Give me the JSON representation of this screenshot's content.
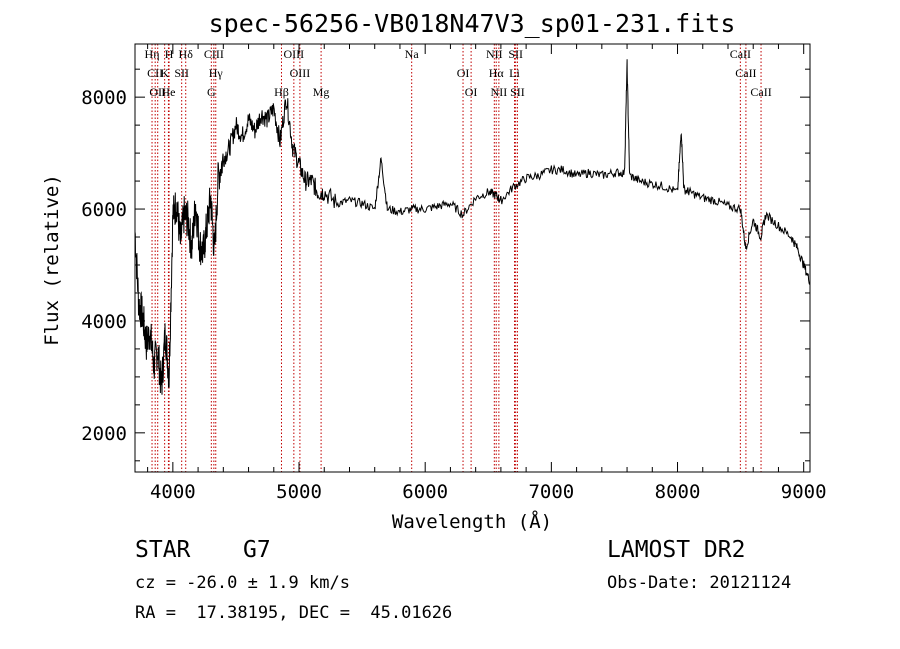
{
  "chart_data": {
    "type": "line",
    "title": "spec-56256-VB018N47V3_sp01-231.fits",
    "xlabel": "Wavelength (Å)",
    "ylabel": "Flux (relative)",
    "xlim": [
      3700,
      9050
    ],
    "ylim": [
      1300,
      8950
    ],
    "xticks": [
      4000,
      5000,
      6000,
      7000,
      8000,
      9000
    ],
    "xtick_labels": [
      "4000",
      "5000",
      "6000",
      "7000",
      "8000",
      "9000"
    ],
    "yticks": [
      2000,
      4000,
      6000,
      8000
    ],
    "ytick_labels": [
      "2000",
      "4000",
      "6000",
      "8000"
    ],
    "series": [
      {
        "x": [
          3700,
          3730,
          3760,
          3790,
          3820,
          3850,
          3880,
          3910,
          3940,
          3970,
          4000,
          4030,
          4060,
          4090,
          4120,
          4150,
          4180,
          4210,
          4240,
          4270,
          4300,
          4330,
          4360,
          4400,
          4450,
          4500,
          4550,
          4600,
          4650,
          4700,
          4750,
          4800,
          4850,
          4900,
          4950,
          5000,
          5050,
          5100,
          5150,
          5200,
          5300,
          5400,
          5500,
          5600,
          5650,
          5700,
          5800,
          5900,
          6000,
          6100,
          6200,
          6300,
          6400,
          6500,
          6560,
          6600,
          6700,
          6800,
          6900,
          7000,
          7100,
          7200,
          7300,
          7400,
          7500,
          7580,
          7600,
          7620,
          7700,
          7800,
          7900,
          8000,
          8030,
          8050,
          8100,
          8200,
          8300,
          8400,
          8500,
          8540,
          8600,
          8660,
          8700,
          8800,
          8900,
          8950,
          9000,
          9050
        ],
        "y": [
          5600,
          4300,
          4100,
          3600,
          3800,
          3200,
          3500,
          2800,
          3800,
          3000,
          5900,
          6100,
          5400,
          5900,
          5800,
          5300,
          6100,
          5400,
          5200,
          5700,
          6200,
          5200,
          6600,
          6900,
          7100,
          7500,
          7300,
          7600,
          7400,
          7700,
          7600,
          7800,
          7200,
          8000,
          7100,
          6800,
          6500,
          6500,
          6300,
          6300,
          6100,
          6150,
          6100,
          6000,
          6900,
          6000,
          5950,
          6000,
          6000,
          6050,
          6100,
          5900,
          6200,
          6300,
          6250,
          6150,
          6400,
          6550,
          6600,
          6700,
          6700,
          6600,
          6650,
          6600,
          6650,
          6650,
          8600,
          6600,
          6500,
          6450,
          6400,
          6300,
          7400,
          6350,
          6300,
          6200,
          6150,
          6050,
          6000,
          5300,
          5800,
          5500,
          5900,
          5700,
          5500,
          5300,
          5000,
          4700
        ]
      }
    ],
    "spectral_lines": [
      {
        "label": "Hη",
        "x": 3835
      },
      {
        "label": "CII",
        "x": 3860
      },
      {
        "label": "OII",
        "x": 3880
      },
      {
        "label": "H",
        "x": 3970
      },
      {
        "label": "K",
        "x": 3935
      },
      {
        "label": "He",
        "x": 3965
      },
      {
        "label": "Hδ",
        "x": 4102
      },
      {
        "label": "SII",
        "x": 4070
      },
      {
        "label": "G",
        "x": 4305
      },
      {
        "label": "CIII",
        "x": 4325
      },
      {
        "label": "Hγ",
        "x": 4340
      },
      {
        "label": "Hβ",
        "x": 4861
      },
      {
        "label": "OIII",
        "x": 4959
      },
      {
        "label": "OIII",
        "x": 5007
      },
      {
        "label": "Mg",
        "x": 5175
      },
      {
        "label": "Na",
        "x": 5893
      },
      {
        "label": "OI",
        "x": 6300
      },
      {
        "label": "OI",
        "x": 6364
      },
      {
        "label": "NII",
        "x": 6548
      },
      {
        "label": "Hα",
        "x": 6563
      },
      {
        "label": "NII",
        "x": 6584
      },
      {
        "label": "SII",
        "x": 6717
      },
      {
        "label": "Li",
        "x": 6708
      },
      {
        "label": "SII",
        "x": 6731
      },
      {
        "label": "CaII",
        "x": 8498
      },
      {
        "label": "CaII",
        "x": 8542
      },
      {
        "label": "CaII",
        "x": 8662
      }
    ]
  },
  "footer": {
    "class_label": "STAR",
    "subclass": "G7",
    "cz": "cz = -26.0 ± 1.9 km/s",
    "radec": "RA =  17.38195, DEC =  45.01626",
    "survey": "LAMOST DR2",
    "obs_date": "Obs-Date: 20121124"
  }
}
